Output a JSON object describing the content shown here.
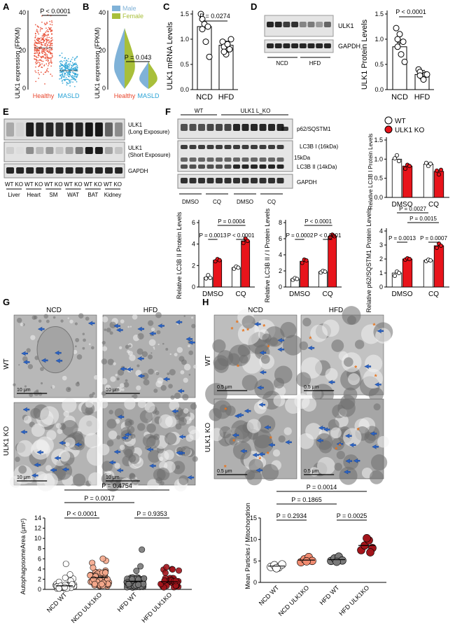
{
  "panel_letters": {
    "A": "A",
    "B": "B",
    "C": "C",
    "D": "D",
    "E": "E",
    "F": "F",
    "G": "G",
    "H": "H"
  },
  "panelA": {
    "ylabel": "ULK1 expression (FPKM)",
    "groups": [
      "Healthy",
      "MASLD"
    ],
    "group_colors": [
      "#e8452c",
      "#2aa3d6"
    ],
    "yticks": [
      "0",
      "20",
      "40"
    ],
    "pvalue": "P < 0.0001"
  },
  "panelB": {
    "ylabel": "ULK1 expression (FPKM)",
    "legend": [
      "Male",
      "Female"
    ],
    "legend_colors": [
      "#7fb2d8",
      "#a8bf3a"
    ],
    "groups": [
      "Healthy",
      "MASLD"
    ],
    "yticks": [
      "0",
      "20",
      "40"
    ],
    "pvalue": "P = 0.043"
  },
  "panelC": {
    "ylabel": "ULK1 mRNA Levels",
    "categories": [
      "NCD",
      "HFD"
    ],
    "yticks": [
      "0.0",
      "0.5",
      "1.0",
      "1.5"
    ],
    "pvalue": "P = 0.0274"
  },
  "panelD": {
    "blot_labels": [
      "ULK1",
      "GAPDH"
    ],
    "lane_groups": [
      "NCD",
      "HFD"
    ],
    "ylabel": "ULK1 Protein Levels",
    "categories": [
      "NCD",
      "HFD"
    ],
    "yticks": [
      "0.0",
      "0.5",
      "1.0",
      "1.5"
    ],
    "pvalue": "P < 0.0001"
  },
  "panelE": {
    "blot_labels": [
      "ULK1",
      "(Long Exposure)",
      "ULK1",
      "(Short Exposure)",
      "GAPDH"
    ],
    "lane_pairs": [
      "WT KO",
      "WT KO",
      "WT KO",
      "WT KO",
      "WT KO",
      "WT KO"
    ],
    "tissues": [
      "Liver",
      "Heart",
      "SM",
      "WAT",
      "BAT",
      "Kidney"
    ]
  },
  "panelF": {
    "genotype_groups": [
      "WT",
      "ULK1 L_KO"
    ],
    "blot_labels": [
      "p62/SQSTM1",
      "LC3B I (16kDa)",
      "15kDa",
      "LC3B II (14kDa)",
      "GAPDH"
    ],
    "treatments": [
      "DMSO",
      "CQ",
      "DMSO",
      "CQ"
    ],
    "legend": [
      "WT",
      "ULK1 KO"
    ],
    "legend_colors": [
      "#ffffff",
      "#e8141b"
    ],
    "lc3bI": {
      "ylabel": "Relative LC3B I Protein Levels",
      "yticks": [
        "0.0",
        "0.5",
        "1.0",
        "1.5"
      ]
    },
    "lc3bII": {
      "ylabel": "Relative LC3B II Protein Levels",
      "yticks": [
        "0",
        "2",
        "4",
        "6"
      ],
      "pvalues": [
        "P = 0.0004",
        "P = 0.0013",
        "P < 0.0001"
      ]
    },
    "ratio": {
      "ylabel": "Relative LC3B II / I Protein Levels",
      "yticks": [
        "0",
        "2",
        "4",
        "6",
        "8"
      ],
      "pvalues": [
        "P < 0.0001",
        "P = 0.0002",
        "P < 0.0001"
      ]
    },
    "p62": {
      "ylabel": "Relative p62/SQSTM1 Protein Levels",
      "yticks": [
        "0",
        "1",
        "2",
        "3",
        "4"
      ],
      "pvalues": [
        "P = 0.0027",
        "P = 0.0015",
        "P = 0.0013",
        "P = 0.0007"
      ]
    },
    "categories": [
      "DMSO",
      "CQ"
    ]
  },
  "panelG": {
    "col_labels": [
      "NCD",
      "HFD"
    ],
    "row_labels": [
      "WT",
      "ULK1 KO"
    ],
    "scalebars": [
      "10 μm",
      "10 μm",
      "10 μm",
      "10 μm"
    ]
  },
  "panelH": {
    "col_labels": [
      "NCD",
      "HFD"
    ],
    "row_labels": [
      "WT",
      "ULK1 KO"
    ],
    "scalebars": [
      "0.5 μm",
      "0.5 μm",
      "0.5 μm",
      "0.5 μm"
    ]
  },
  "bottomLeft": {
    "ylabel": "AutophagosomeArea (μm²)",
    "categories": [
      "NCD WT",
      "NCD ULK1KO",
      "HFD WT",
      "HFD ULK1KO"
    ],
    "colors": [
      "#ffffff",
      "#f6a98c",
      "#7a7a7a",
      "#a3141b"
    ],
    "yticks": [
      "0",
      "2",
      "4",
      "6",
      "8",
      "10",
      "12",
      "14"
    ],
    "pvalues": [
      "P = 0.4754",
      "P = 0.0017",
      "P < 0.0001",
      "P = 0.9353"
    ]
  },
  "bottomRight": {
    "ylabel": "Mean Particles / Mitochondrion",
    "categories": [
      "NCD WT",
      "NCD ULK1KO",
      "HFD WT",
      "HFD ULK1KO"
    ],
    "colors": [
      "#ffffff",
      "#f08b70",
      "#7a7a7a",
      "#a3141b"
    ],
    "yticks": [
      "0",
      "5",
      "10",
      "15"
    ],
    "pvalues": [
      "P = 0.0014",
      "P = 0.1865",
      "P = 0.2934",
      "P = 0.0025"
    ]
  },
  "chart_data": [
    {
      "type": "bar",
      "id": "C",
      "categories": [
        "NCD",
        "HFD"
      ],
      "values": [
        1.25,
        0.88
      ],
      "ylabel": "ULK1 mRNA Levels",
      "ylim": [
        0,
        1.5
      ]
    },
    {
      "type": "bar",
      "id": "D",
      "categories": [
        "NCD",
        "HFD"
      ],
      "values": [
        0.85,
        0.3
      ],
      "ylabel": "ULK1 Protein Levels",
      "ylim": [
        0,
        1.5
      ]
    },
    {
      "type": "bar",
      "id": "F-LC3BI",
      "categories": [
        "DMSO",
        "CQ"
      ],
      "series": [
        {
          "name": "WT",
          "values": [
            1.0,
            0.87
          ]
        },
        {
          "name": "ULK1 KO",
          "values": [
            0.82,
            0.68
          ]
        }
      ],
      "ylim": [
        0,
        1.5
      ]
    },
    {
      "type": "bar",
      "id": "F-LC3BII",
      "categories": [
        "DMSO",
        "CQ"
      ],
      "series": [
        {
          "name": "WT",
          "values": [
            0.9,
            1.8
          ]
        },
        {
          "name": "ULK1 KO",
          "values": [
            2.5,
            4.3
          ]
        }
      ],
      "ylim": [
        0,
        6
      ]
    },
    {
      "type": "bar",
      "id": "F-ratio",
      "categories": [
        "DMSO",
        "CQ"
      ],
      "series": [
        {
          "name": "WT",
          "values": [
            1.0,
            1.9
          ]
        },
        {
          "name": "ULK1 KO",
          "values": [
            3.2,
            6.3
          ]
        }
      ],
      "ylim": [
        0,
        8
      ]
    },
    {
      "type": "bar",
      "id": "F-p62",
      "categories": [
        "DMSO",
        "CQ"
      ],
      "series": [
        {
          "name": "WT",
          "values": [
            1.0,
            1.9
          ]
        },
        {
          "name": "ULK1 KO",
          "values": [
            2.0,
            2.95
          ]
        }
      ],
      "ylim": [
        0,
        4
      ]
    },
    {
      "type": "scatter",
      "id": "G-quant",
      "categories": [
        "NCD WT",
        "NCD ULK1KO",
        "HFD WT",
        "HFD ULK1KO"
      ],
      "values": [
        0.7,
        2.3,
        1.6,
        1.5
      ],
      "ylim": [
        0,
        14
      ]
    },
    {
      "type": "scatter",
      "id": "H-quant",
      "categories": [
        "NCD WT",
        "NCD ULK1KO",
        "HFD WT",
        "HFD ULK1KO"
      ],
      "values": [
        3.8,
        5.2,
        5.3,
        8.6
      ],
      "ylim": [
        0,
        15
      ]
    }
  ]
}
